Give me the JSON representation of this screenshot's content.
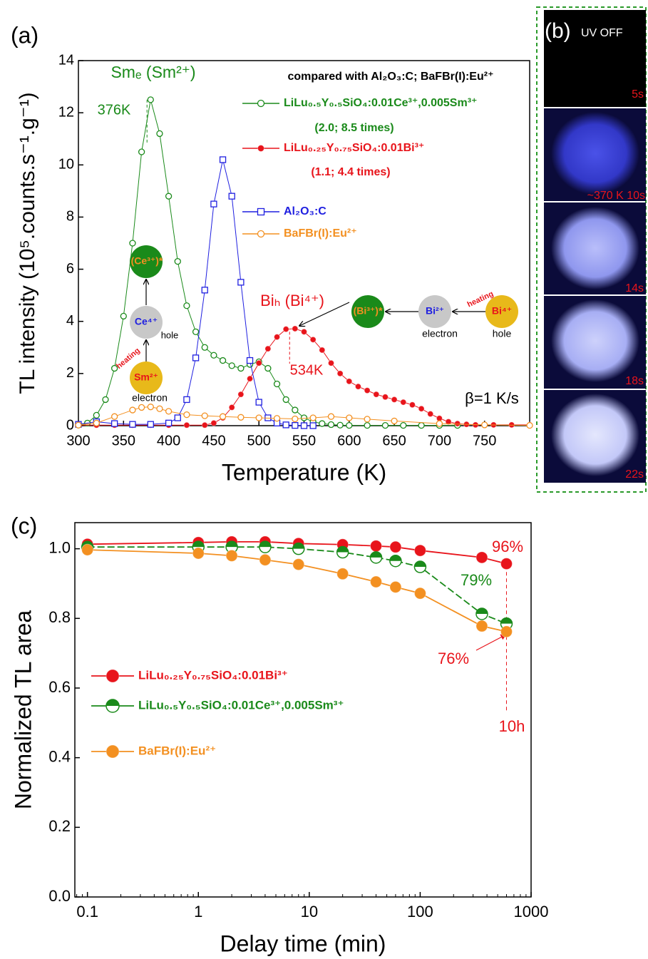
{
  "chart_data": [
    {
      "type": "line",
      "xlabel": "Temperature (K)",
      "ylabel": "TL intensity (10⁵.counts.s⁻¹.g⁻¹)",
      "xlim": [
        300,
        800
      ],
      "ylim": [
        0,
        14
      ],
      "xticks": [
        300,
        350,
        400,
        450,
        500,
        550,
        600,
        650,
        700,
        750
      ],
      "yticks": [
        0,
        2,
        4,
        6,
        8,
        10,
        12,
        14
      ],
      "series": [
        {
          "name": "LiLu₀.₅Y₀.₅SiO₄:0.01Ce³⁺,0.005Sm³⁺",
          "color": "#1a8a1a",
          "marker": "circle-open",
          "x": [
            300,
            310,
            320,
            330,
            340,
            350,
            360,
            370,
            380,
            390,
            400,
            410,
            420,
            430,
            440,
            450,
            460,
            470,
            480,
            490,
            500,
            510,
            520,
            530,
            540,
            550,
            560,
            570,
            580,
            590,
            600,
            620,
            640,
            660,
            680,
            700,
            720
          ],
          "values": [
            0.02,
            0.1,
            0.4,
            1.0,
            2.2,
            4.2,
            7.0,
            10.5,
            12.5,
            11.2,
            8.8,
            6.3,
            4.6,
            3.6,
            3.0,
            2.7,
            2.5,
            2.3,
            2.2,
            2.35,
            2.45,
            2.2,
            1.6,
            1.0,
            0.6,
            0.3,
            0.15,
            0.08,
            0.04,
            0.02,
            0.01,
            0.01,
            0.01,
            0.01,
            0.01,
            0.01,
            0.01
          ]
        },
        {
          "name": "LiLu₀.₂₅Y₀.₇₅SiO₄:0.01Bi³⁺",
          "color": "#e8141b",
          "marker": "circle-filled",
          "x": [
            300,
            320,
            340,
            360,
            380,
            400,
            420,
            440,
            450,
            460,
            470,
            480,
            490,
            500,
            510,
            520,
            530,
            540,
            550,
            560,
            570,
            580,
            590,
            600,
            610,
            620,
            630,
            640,
            650,
            660,
            670,
            680,
            690,
            700,
            710,
            720,
            730,
            740,
            760,
            780,
            800
          ],
          "values": [
            0.02,
            0.02,
            0.02,
            0.02,
            0.02,
            0.02,
            0.02,
            0.02,
            0.1,
            0.3,
            0.7,
            1.2,
            1.8,
            2.4,
            2.95,
            3.4,
            3.7,
            3.72,
            3.6,
            3.3,
            2.9,
            2.4,
            2.0,
            1.7,
            1.5,
            1.35,
            1.2,
            1.1,
            1.0,
            0.9,
            0.8,
            0.65,
            0.45,
            0.28,
            0.15,
            0.08,
            0.05,
            0.03,
            0.03,
            0.03,
            0.03
          ]
        },
        {
          "name": "Al₂O₃:C",
          "color": "#1f1fe0",
          "marker": "square-open",
          "x": [
            300,
            320,
            340,
            360,
            380,
            400,
            410,
            420,
            430,
            440,
            450,
            460,
            470,
            480,
            490,
            500,
            510,
            520,
            530,
            540,
            550,
            560
          ],
          "values": [
            0.05,
            0.15,
            0.08,
            0.05,
            0.05,
            0.1,
            0.3,
            1.0,
            2.6,
            5.2,
            8.5,
            10.2,
            8.8,
            5.5,
            2.5,
            0.9,
            0.3,
            0.1,
            0.03,
            0.01,
            0,
            0
          ]
        },
        {
          "name": "BaFBr(I):Eu²⁺",
          "color": "#f39021",
          "marker": "circle-open",
          "x": [
            300,
            320,
            340,
            360,
            370,
            380,
            390,
            400,
            420,
            440,
            460,
            480,
            500,
            520,
            540,
            560,
            580,
            600,
            620,
            650,
            700,
            750,
            800
          ],
          "values": [
            0.02,
            0.1,
            0.35,
            0.6,
            0.7,
            0.72,
            0.65,
            0.55,
            0.42,
            0.38,
            0.35,
            0.32,
            0.3,
            0.28,
            0.26,
            0.3,
            0.35,
            0.3,
            0.25,
            0.18,
            0.08,
            0.03,
            0.01
          ]
        }
      ],
      "annotations": [
        "(a)",
        "Smₑ (Sm²⁺)",
        "376K",
        "compared with Al₂O₃:C; BaFBr(I):Eu²⁺",
        "(2.0;  8.5 times)",
        "(1.1; 4.4 times)",
        "Biₕ (Bi⁴⁺)",
        "534K",
        "β=1 K/s",
        "(Ce³⁺)*",
        "Ce⁴⁺",
        "hole",
        "heating",
        "Sm²⁺",
        "electron",
        "(Bi³⁺)*",
        "Bi²⁺",
        "electron",
        "heating",
        "Bi⁴⁺",
        "hole"
      ]
    },
    {
      "type": "line",
      "xlabel": "Delay time (min)",
      "ylabel": "Normalized TL area",
      "xscale": "log",
      "xlim": [
        0.077,
        1000
      ],
      "ylim": [
        0,
        1.075
      ],
      "xticks": [
        0.1,
        1,
        10,
        100,
        1000
      ],
      "yticks": [
        {
          "value": 0,
          "label": "0.0"
        },
        {
          "value": 0.2,
          "label": "0.2"
        },
        {
          "value": 0.4,
          "label": "0.4"
        },
        {
          "value": 0.6,
          "label": "0.6"
        },
        {
          "value": 0.8,
          "label": "0.8"
        },
        {
          "value": 1.0,
          "label": "1.0"
        }
      ],
      "x": [
        0.1,
        1,
        2,
        4,
        8,
        20,
        40,
        60,
        100,
        360,
        600
      ],
      "series": [
        {
          "name": "LiLu₀.₂₅Y₀.₇₅SiO₄:0.01Bi³⁺",
          "color": "#e8141b",
          "marker": "circle-filled",
          "values": [
            1.013,
            1.018,
            1.02,
            1.02,
            1.015,
            1.012,
            1.008,
            1.005,
            0.995,
            0.975,
            0.957
          ]
        },
        {
          "name": "LiLu₀.₅Y₀.₅SiO₄:0.01Ce³⁺,0.005Sm³⁺",
          "color": "#1a8a1a",
          "marker": "circle-half",
          "values": [
            1.005,
            1.005,
            1.005,
            1.005,
            1.0,
            0.99,
            0.975,
            0.965,
            0.948,
            0.813,
            0.785
          ]
        },
        {
          "name": "BaFBr(I):Eu²⁺",
          "color": "#f39021",
          "marker": "circle-filled",
          "values": [
            0.997,
            0.987,
            0.98,
            0.968,
            0.955,
            0.928,
            0.905,
            0.89,
            0.872,
            0.778,
            0.762
          ]
        }
      ],
      "annotations": [
        "(c)",
        "96%",
        "79%",
        "76%",
        "10h"
      ]
    }
  ],
  "photo_panel": {
    "label": "(b)",
    "caption": "UV OFF",
    "frames": [
      "5s",
      "~370 K 10s",
      "14s",
      "18s",
      "22s"
    ]
  }
}
